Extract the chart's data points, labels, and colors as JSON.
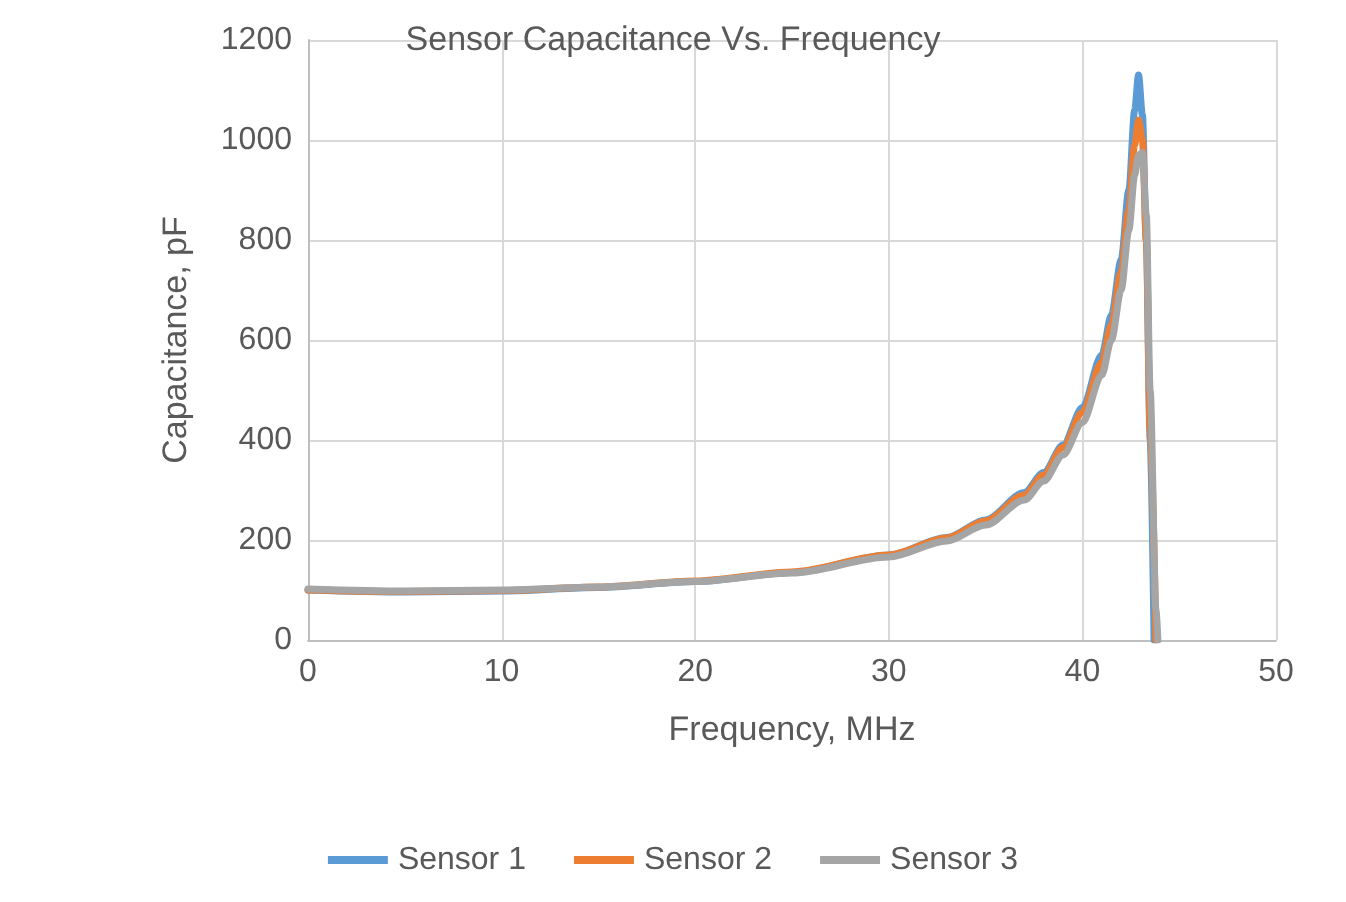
{
  "chart_data": {
    "type": "line",
    "title": "Sensor Capacitance Vs. Frequency",
    "xlabel": "Frequency, MHz",
    "ylabel": "Capacitance, pF",
    "xlim": [
      0,
      50
    ],
    "xticks": [
      0,
      10,
      20,
      30,
      40,
      50
    ],
    "ylim": [
      0,
      1200
    ],
    "yticks": [
      0,
      200,
      400,
      600,
      800,
      1000,
      1200
    ],
    "grid": true,
    "legend": "bottom",
    "marker": "none",
    "line_style": "solid",
    "series": [
      {
        "name": "Sensor 1",
        "color": "#5b9bd5",
        "x": [
          0,
          5,
          10,
          15,
          20,
          25,
          30,
          33,
          35,
          37,
          38,
          39,
          40,
          41,
          41.5,
          42,
          42.4,
          42.7,
          42.9,
          43.1,
          43.3,
          43.5,
          43.7
        ],
        "values": [
          100,
          96,
          98,
          105,
          117,
          135,
          170,
          205,
          240,
          295,
          335,
          390,
          465,
          570,
          650,
          760,
          900,
          1060,
          1130,
          1050,
          800,
          400,
          0
        ]
      },
      {
        "name": "Sensor 2",
        "color": "#ed7d31",
        "x": [
          0,
          5,
          10,
          15,
          20,
          25,
          30,
          33,
          35,
          37,
          38,
          39,
          40,
          41,
          41.5,
          42,
          42.4,
          42.7,
          42.9,
          43.1,
          43.3,
          43.5,
          43.8
        ],
        "values": [
          100,
          97,
          99,
          106,
          118,
          136,
          170,
          204,
          238,
          290,
          330,
          385,
          455,
          555,
          630,
          735,
          860,
          990,
          1040,
          1000,
          800,
          420,
          0
        ]
      },
      {
        "name": "Sensor 3",
        "color": "#a5a5a5",
        "x": [
          0,
          5,
          10,
          15,
          20,
          25,
          30,
          33,
          35,
          37,
          38,
          39,
          40,
          41,
          41.5,
          42,
          42.4,
          42.7,
          42.9,
          43.1,
          43.3,
          43.5,
          43.8,
          43.9
        ],
        "values": [
          102,
          98,
          100,
          106,
          117,
          134,
          166,
          198,
          230,
          280,
          318,
          370,
          435,
          530,
          600,
          700,
          820,
          930,
          970,
          975,
          850,
          500,
          60,
          0
        ]
      }
    ]
  }
}
